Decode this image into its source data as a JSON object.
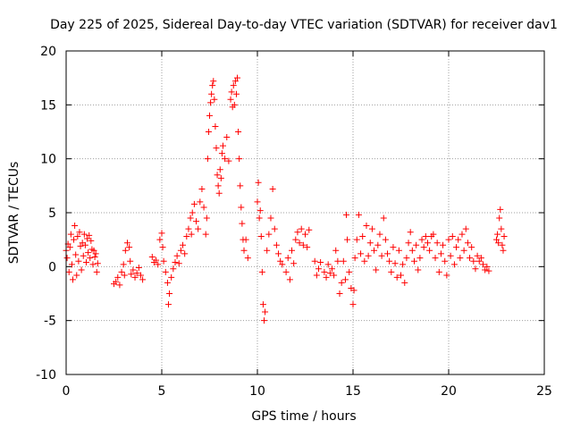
{
  "chart_data": {
    "type": "scatter",
    "title": "Day 225 of 2025, Sidereal Day-to-day VTEC variation (SDTVAR) for receiver dav1",
    "xlabel": "GPS time / hours",
    "ylabel": "SDTVAR / TECUs",
    "xlim": [
      0,
      25
    ],
    "ylim": [
      -10,
      20
    ],
    "xticks": [
      0,
      5,
      10,
      15,
      20,
      25
    ],
    "yticks": [
      -10,
      -5,
      0,
      5,
      10,
      15,
      20
    ],
    "grid": true,
    "marker": "+",
    "colors": {
      "marker": "#ff0000",
      "grid": "#a0a0a0",
      "axis": "#000000"
    },
    "series": [
      {
        "name": "SDTVAR",
        "points": [
          [
            0.0,
            1.5
          ],
          [
            0.05,
            0.8
          ],
          [
            0.1,
            2.1
          ],
          [
            0.15,
            -0.5
          ],
          [
            0.2,
            1.8
          ],
          [
            0.25,
            3.0
          ],
          [
            0.3,
            0.2
          ],
          [
            0.35,
            -1.2
          ],
          [
            0.4,
            2.5
          ],
          [
            0.45,
            3.8
          ],
          [
            0.5,
            1.1
          ],
          [
            0.55,
            -0.8
          ],
          [
            0.6,
            2.8
          ],
          [
            0.65,
            0.5
          ],
          [
            0.7,
            3.2
          ],
          [
            0.75,
            1.9
          ],
          [
            0.8,
            -0.3
          ],
          [
            0.85,
            2.2
          ],
          [
            0.9,
            1.0
          ],
          [
            0.95,
            3.0
          ],
          [
            1.0,
            2.0
          ],
          [
            1.05,
            0.4
          ],
          [
            1.1,
            2.6
          ],
          [
            1.15,
            1.3
          ],
          [
            1.2,
            2.9
          ],
          [
            1.25,
            0.8
          ],
          [
            1.3,
            2.4
          ],
          [
            1.35,
            1.6
          ],
          [
            1.4,
            0.2
          ],
          [
            1.45,
            1.5
          ],
          [
            1.5,
            0.9
          ],
          [
            1.55,
            1.2
          ],
          [
            1.6,
            -0.5
          ],
          [
            1.65,
            0.3
          ],
          [
            2.5,
            -1.6
          ],
          [
            2.6,
            -1.4
          ],
          [
            2.7,
            -1.0
          ],
          [
            2.8,
            -1.7
          ],
          [
            2.9,
            -0.5
          ],
          [
            3.0,
            0.2
          ],
          [
            3.05,
            -0.8
          ],
          [
            3.1,
            1.5
          ],
          [
            3.2,
            2.2
          ],
          [
            3.3,
            1.8
          ],
          [
            3.35,
            0.5
          ],
          [
            3.4,
            -0.7
          ],
          [
            3.5,
            -0.3
          ],
          [
            3.6,
            -1.0
          ],
          [
            3.7,
            -0.6
          ],
          [
            3.8,
            -0.1
          ],
          [
            3.9,
            -0.8
          ],
          [
            4.0,
            -1.2
          ],
          [
            4.5,
            0.9
          ],
          [
            4.6,
            0.4
          ],
          [
            4.7,
            0.6
          ],
          [
            4.8,
            0.2
          ],
          [
            4.9,
            2.5
          ],
          [
            5.0,
            3.1
          ],
          [
            5.05,
            1.8
          ],
          [
            5.1,
            0.5
          ],
          [
            5.2,
            -0.5
          ],
          [
            5.3,
            -1.5
          ],
          [
            5.35,
            -3.5
          ],
          [
            5.4,
            -2.5
          ],
          [
            5.5,
            -1.0
          ],
          [
            5.6,
            -0.2
          ],
          [
            5.7,
            0.4
          ],
          [
            5.8,
            1.0
          ],
          [
            5.9,
            0.3
          ],
          [
            6.0,
            1.5
          ],
          [
            6.1,
            2.0
          ],
          [
            6.2,
            1.2
          ],
          [
            6.3,
            2.8
          ],
          [
            6.4,
            3.5
          ],
          [
            6.5,
            4.5
          ],
          [
            6.55,
            3.0
          ],
          [
            6.6,
            5.0
          ],
          [
            6.7,
            5.8
          ],
          [
            6.8,
            4.2
          ],
          [
            6.9,
            3.5
          ],
          [
            7.0,
            6.0
          ],
          [
            7.1,
            7.2
          ],
          [
            7.2,
            5.5
          ],
          [
            7.3,
            3.0
          ],
          [
            7.35,
            4.5
          ],
          [
            7.4,
            10.0
          ],
          [
            7.45,
            12.5
          ],
          [
            7.5,
            14.0
          ],
          [
            7.55,
            15.2
          ],
          [
            7.6,
            16.0
          ],
          [
            7.65,
            16.8
          ],
          [
            7.7,
            17.2
          ],
          [
            7.75,
            15.5
          ],
          [
            7.8,
            13.0
          ],
          [
            7.85,
            11.0
          ],
          [
            7.9,
            8.5
          ],
          [
            7.95,
            7.5
          ],
          [
            8.0,
            6.8
          ],
          [
            8.05,
            9.0
          ],
          [
            8.1,
            8.2
          ],
          [
            8.15,
            10.5
          ],
          [
            8.2,
            11.2
          ],
          [
            8.3,
            10.0
          ],
          [
            8.4,
            12.0
          ],
          [
            8.5,
            9.8
          ],
          [
            8.6,
            15.5
          ],
          [
            8.65,
            16.2
          ],
          [
            8.7,
            14.8
          ],
          [
            8.75,
            16.8
          ],
          [
            8.8,
            15.0
          ],
          [
            8.85,
            17.2
          ],
          [
            8.9,
            16.0
          ],
          [
            8.95,
            17.5
          ],
          [
            9.0,
            12.5
          ],
          [
            9.05,
            10.0
          ],
          [
            9.1,
            7.5
          ],
          [
            9.15,
            5.5
          ],
          [
            9.2,
            4.0
          ],
          [
            9.25,
            2.5
          ],
          [
            9.3,
            1.5
          ],
          [
            9.4,
            2.5
          ],
          [
            9.5,
            0.8
          ],
          [
            10.0,
            6.0
          ],
          [
            10.05,
            7.8
          ],
          [
            10.1,
            4.5
          ],
          [
            10.15,
            5.2
          ],
          [
            10.2,
            2.8
          ],
          [
            10.25,
            -0.5
          ],
          [
            10.3,
            -3.5
          ],
          [
            10.35,
            -5.0
          ],
          [
            10.4,
            -4.2
          ],
          [
            10.5,
            1.5
          ],
          [
            10.6,
            3.0
          ],
          [
            10.7,
            4.5
          ],
          [
            10.8,
            7.2
          ],
          [
            10.9,
            3.5
          ],
          [
            11.0,
            2.0
          ],
          [
            11.1,
            1.2
          ],
          [
            11.2,
            0.5
          ],
          [
            11.3,
            0.2
          ],
          [
            11.5,
            -0.5
          ],
          [
            11.6,
            0.8
          ],
          [
            11.7,
            -1.2
          ],
          [
            11.8,
            1.5
          ],
          [
            11.9,
            0.3
          ],
          [
            12.0,
            2.5
          ],
          [
            12.1,
            3.2
          ],
          [
            12.2,
            2.2
          ],
          [
            12.3,
            3.5
          ],
          [
            12.4,
            2.0
          ],
          [
            12.5,
            3.0
          ],
          [
            12.6,
            1.8
          ],
          [
            12.7,
            3.4
          ],
          [
            13.0,
            0.5
          ],
          [
            13.1,
            -0.8
          ],
          [
            13.2,
            -0.2
          ],
          [
            13.3,
            0.4
          ],
          [
            13.5,
            -0.5
          ],
          [
            13.6,
            -1.0
          ],
          [
            13.7,
            0.2
          ],
          [
            13.8,
            -0.6
          ],
          [
            13.9,
            -0.2
          ],
          [
            14.0,
            -0.8
          ],
          [
            14.1,
            1.5
          ],
          [
            14.2,
            0.5
          ],
          [
            14.3,
            -2.5
          ],
          [
            14.4,
            -1.5
          ],
          [
            14.5,
            0.5
          ],
          [
            14.6,
            -1.2
          ],
          [
            14.65,
            4.8
          ],
          [
            14.7,
            2.5
          ],
          [
            14.8,
            -0.5
          ],
          [
            14.9,
            -2.0
          ],
          [
            15.0,
            -3.5
          ],
          [
            15.05,
            -2.2
          ],
          [
            15.1,
            0.8
          ],
          [
            15.2,
            2.5
          ],
          [
            15.3,
            4.8
          ],
          [
            15.4,
            1.2
          ],
          [
            15.5,
            2.8
          ],
          [
            15.6,
            0.5
          ],
          [
            15.7,
            3.8
          ],
          [
            15.8,
            1.0
          ],
          [
            15.9,
            2.2
          ],
          [
            16.0,
            3.5
          ],
          [
            16.1,
            1.5
          ],
          [
            16.2,
            -0.3
          ],
          [
            16.3,
            2.0
          ],
          [
            16.4,
            3.0
          ],
          [
            16.5,
            1.0
          ],
          [
            16.6,
            4.5
          ],
          [
            16.7,
            2.5
          ],
          [
            16.8,
            1.2
          ],
          [
            16.9,
            0.5
          ],
          [
            17.0,
            -0.5
          ],
          [
            17.1,
            1.8
          ],
          [
            17.2,
            0.3
          ],
          [
            17.3,
            -1.0
          ],
          [
            17.4,
            1.5
          ],
          [
            17.5,
            -0.8
          ],
          [
            17.6,
            0.2
          ],
          [
            17.7,
            -1.5
          ],
          [
            17.8,
            0.8
          ],
          [
            17.9,
            2.2
          ],
          [
            18.0,
            3.2
          ],
          [
            18.1,
            1.5
          ],
          [
            18.2,
            0.5
          ],
          [
            18.3,
            2.0
          ],
          [
            18.4,
            -0.3
          ],
          [
            18.5,
            0.8
          ],
          [
            18.6,
            2.5
          ],
          [
            18.7,
            1.8
          ],
          [
            18.8,
            2.8
          ],
          [
            18.9,
            2.2
          ],
          [
            19.0,
            1.5
          ],
          [
            19.1,
            2.8
          ],
          [
            19.2,
            3.0
          ],
          [
            19.3,
            0.8
          ],
          [
            19.4,
            2.2
          ],
          [
            19.5,
            -0.5
          ],
          [
            19.6,
            1.2
          ],
          [
            19.7,
            2.0
          ],
          [
            19.8,
            0.5
          ],
          [
            19.9,
            -0.8
          ],
          [
            20.0,
            2.5
          ],
          [
            20.1,
            1.0
          ],
          [
            20.2,
            2.8
          ],
          [
            20.3,
            0.2
          ],
          [
            20.4,
            1.8
          ],
          [
            20.5,
            2.5
          ],
          [
            20.6,
            0.8
          ],
          [
            20.7,
            3.0
          ],
          [
            20.8,
            1.5
          ],
          [
            20.9,
            3.5
          ],
          [
            21.0,
            2.2
          ],
          [
            21.1,
            0.8
          ],
          [
            21.2,
            1.8
          ],
          [
            21.3,
            0.5
          ],
          [
            21.4,
            -0.2
          ],
          [
            21.5,
            1.0
          ],
          [
            21.6,
            0.5
          ],
          [
            21.7,
            0.8
          ],
          [
            21.8,
            0.2
          ],
          [
            21.9,
            -0.3
          ],
          [
            22.0,
            0.0
          ],
          [
            22.1,
            -0.4
          ],
          [
            22.5,
            2.5
          ],
          [
            22.55,
            3.0
          ],
          [
            22.6,
            2.2
          ],
          [
            22.65,
            4.5
          ],
          [
            22.7,
            5.3
          ],
          [
            22.75,
            3.5
          ],
          [
            22.8,
            2.0
          ],
          [
            22.85,
            1.5
          ],
          [
            22.9,
            2.8
          ]
        ]
      }
    ]
  }
}
